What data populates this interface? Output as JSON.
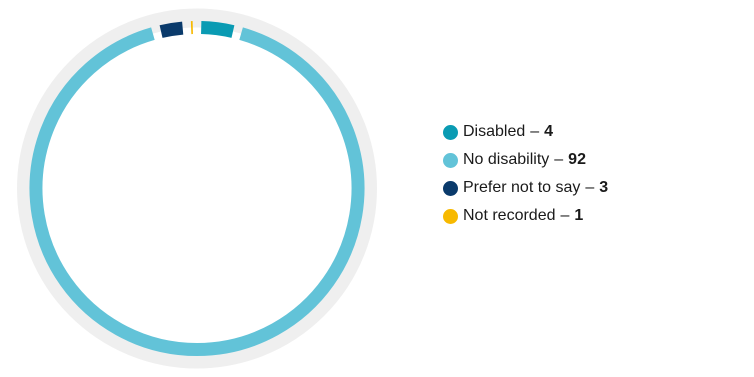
{
  "chart_data": {
    "type": "pie",
    "title": "",
    "categories": [
      "Disabled",
      "No disability",
      "Prefer not to say",
      "Not recorded"
    ],
    "values": [
      4,
      92,
      3,
      1
    ],
    "colors": [
      "#0a9bb3",
      "#62c3d8",
      "#0a3a6b",
      "#f7b900"
    ],
    "track_color": "#efefef",
    "separator": "–",
    "legend_placement": "right"
  }
}
